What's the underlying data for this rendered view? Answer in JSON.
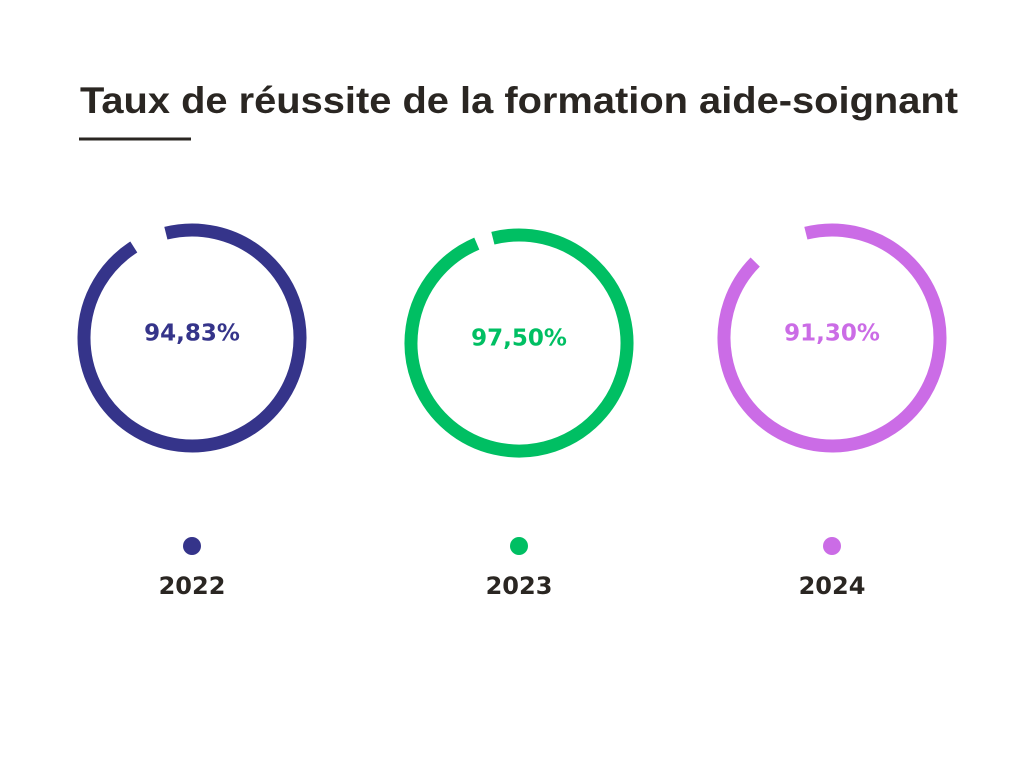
{
  "chart_data": {
    "type": "ring",
    "title": "Taux de réussite de la formation aide-soignant",
    "categories": [
      "2022",
      "2023",
      "2024"
    ],
    "values": [
      94.83,
      97.5,
      91.3
    ],
    "value_labels": [
      "94,83%",
      "97,50%",
      "91,30%"
    ],
    "colors": [
      "#35348a",
      "#00bf63",
      "#cb6ce6"
    ],
    "ylim": [
      0,
      100
    ]
  }
}
